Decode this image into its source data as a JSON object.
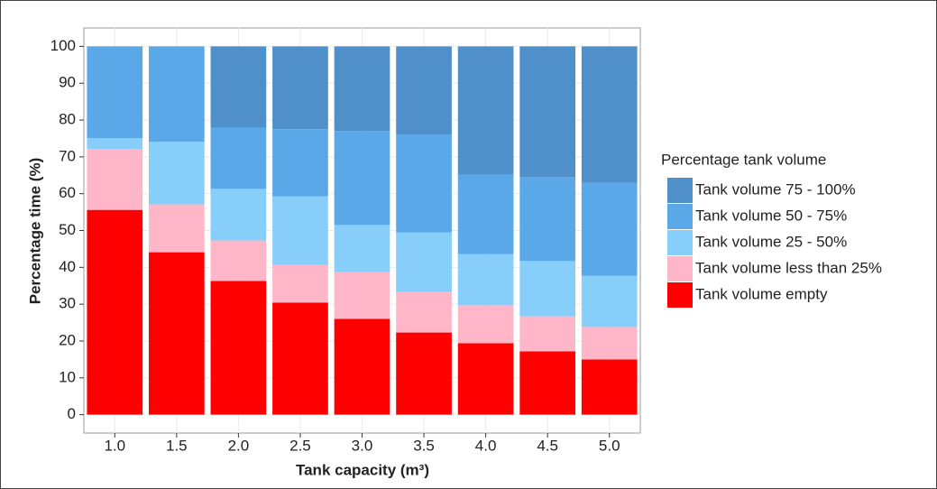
{
  "chart_data": {
    "type": "stacked_bar",
    "x_label": "Tank capacity (m³)",
    "y_label": "Percentage time (%)",
    "legend_title": "Percentage tank volume",
    "categories": [
      "1.0",
      "1.5",
      "2.0",
      "2.5",
      "3.0",
      "3.5",
      "4.0",
      "4.5",
      "5.0"
    ],
    "series": [
      {
        "name": "Tank volume empty",
        "color": "#ff0000",
        "values": [
          55.6,
          44.1,
          36.3,
          30.4,
          26.0,
          22.3,
          19.4,
          17.2,
          15.0
        ]
      },
      {
        "name": "Tank volume less than 25%",
        "color": "#ffb6c8",
        "values": [
          16.5,
          13.0,
          11.0,
          10.3,
          12.7,
          11.0,
          10.3,
          9.5,
          8.8
        ]
      },
      {
        "name": "Tank volume 25 - 50%",
        "color": "#87cefa",
        "values": [
          3.0,
          17.0,
          14.0,
          18.6,
          12.8,
          16.2,
          13.9,
          15.0,
          13.9
        ]
      },
      {
        "name": "Tank volume 50 - 75%",
        "color": "#5aa8e8",
        "values": [
          24.9,
          25.9,
          16.6,
          18.2,
          25.5,
          26.5,
          21.6,
          22.8,
          25.3
        ]
      },
      {
        "name": "Tank volume 75 - 100%",
        "color": "#4f8fca",
        "values": [
          0,
          0,
          22.1,
          22.5,
          23.0,
          24.0,
          34.8,
          35.5,
          37.0
        ]
      }
    ],
    "ylim": [
      -5,
      105
    ],
    "yticks": [
      0,
      10,
      20,
      30,
      40,
      50,
      60,
      70,
      80,
      90,
      100
    ],
    "grid": true,
    "legend_position": "right"
  }
}
